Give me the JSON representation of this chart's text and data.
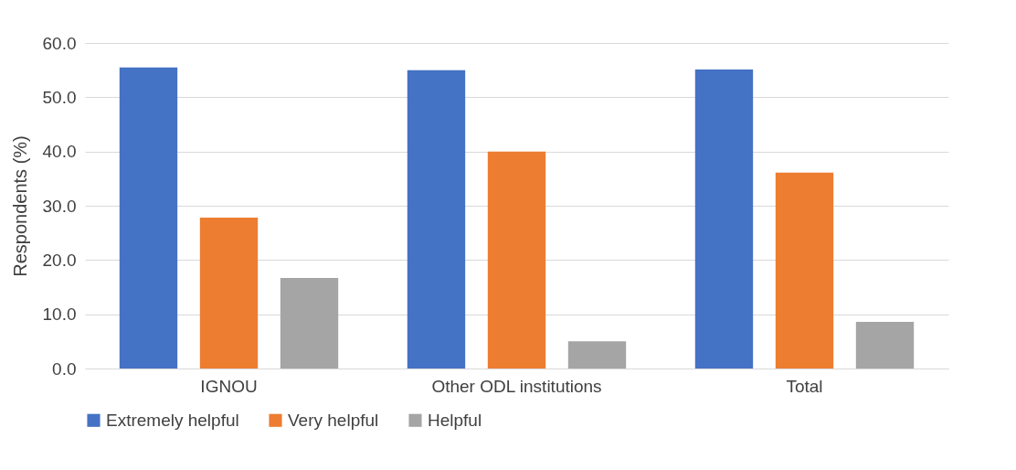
{
  "chart_data": {
    "type": "bar",
    "ylabel": "Respondents (%)",
    "categories": [
      "IGNOU",
      "Other ODL institutions",
      "Total"
    ],
    "series": [
      {
        "name": "Extremely helpful",
        "color": "#4472c4",
        "values": [
          55.5,
          55.0,
          55.1
        ]
      },
      {
        "name": "Very helpful",
        "color": "#ed7d31",
        "values": [
          27.8,
          40.0,
          36.1
        ]
      },
      {
        "name": "Helpful",
        "color": "#a5a5a5",
        "values": [
          16.7,
          5.0,
          8.6
        ]
      }
    ],
    "ylim": [
      0,
      60
    ],
    "yticks": [
      {
        "value": 0,
        "label": "0.0"
      },
      {
        "value": 10,
        "label": "10.0"
      },
      {
        "value": 20,
        "label": "20.0"
      },
      {
        "value": 30,
        "label": "30.0"
      },
      {
        "value": 40,
        "label": "40.0"
      },
      {
        "value": 50,
        "label": "50.0"
      },
      {
        "value": 60,
        "label": "60.0"
      }
    ],
    "grid": "y",
    "legend": "bottom"
  }
}
